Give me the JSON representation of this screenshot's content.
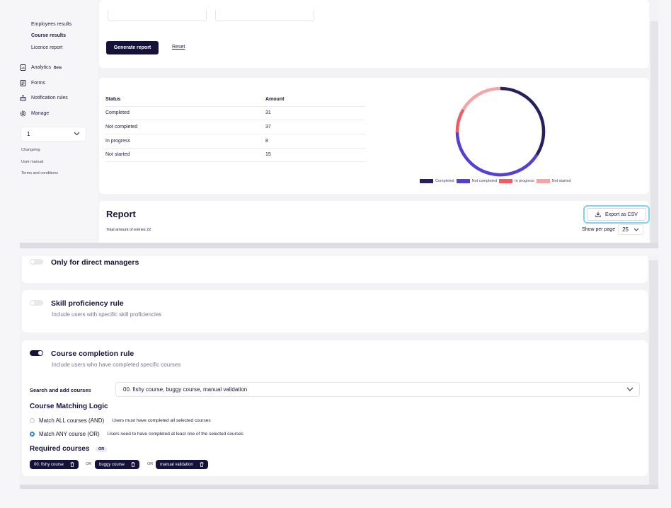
{
  "sidebar": {
    "sub_items": [
      {
        "label": "Employees results",
        "active": false
      },
      {
        "label": "Course results",
        "active": true
      },
      {
        "label": "Licence report",
        "active": false
      }
    ],
    "items": [
      {
        "label": "Analytics",
        "badge": "Beta",
        "icon": "analytics-icon"
      },
      {
        "label": "Forms",
        "icon": "forms-icon"
      },
      {
        "label": "Notification rules",
        "icon": "notification-icon"
      },
      {
        "label": "Manage",
        "icon": "gear-icon"
      }
    ],
    "select_value": "1",
    "links": [
      "Changelog",
      "User manual",
      "Terms and conditions"
    ]
  },
  "filters": {
    "generate_label": "Generate report",
    "reset_label": "Reset"
  },
  "status_table": {
    "headers": [
      "Status",
      "Amount"
    ],
    "rows": [
      {
        "status": "Completed",
        "amount": "31"
      },
      {
        "status": "Not completed",
        "amount": "37"
      },
      {
        "status": "In progress",
        "amount": "8"
      },
      {
        "status": "Not started",
        "amount": "15"
      }
    ]
  },
  "chart_data": {
    "type": "pie",
    "variant": "donut",
    "categories": [
      "Completed",
      "Not completed",
      "In progress",
      "Not started"
    ],
    "values": [
      31,
      37,
      8,
      15
    ],
    "colors": [
      "#26205e",
      "#5440d4",
      "#ee5c66",
      "#f5a5a5"
    ],
    "legend_position": "bottom"
  },
  "report": {
    "title": "Report",
    "entries_text": "Total amount of entries 22",
    "export_label": "Export as CSV",
    "per_page_label": "Show per page",
    "per_page_value": "25"
  },
  "rules": {
    "direct_managers": {
      "title": "Only for direct managers",
      "enabled": false
    },
    "skill": {
      "title": "Skill proficiency rule",
      "description": "Include users with specific skill proficiencies",
      "enabled": false
    },
    "course": {
      "title": "Course completion rule",
      "description": "Include users who have completed specific courses",
      "enabled": true,
      "search_label": "Search and add courses",
      "search_value": "00. fishy course, buggy course, manual validation",
      "logic_title": "Course Matching Logic",
      "options": [
        {
          "label": "Match ALL courses (AND)",
          "description": "Users must have completed all selected courses",
          "checked": false
        },
        {
          "label": "Match ANY course (OR)",
          "description": "Users need to have completed at least one of the selected courses",
          "checked": true
        }
      ],
      "required_title": "Required courses",
      "required_badge": "OR",
      "chips": [
        "00. fishy course",
        "buggy course",
        "manual validation"
      ],
      "chip_separator": "OR"
    }
  },
  "colors": {
    "primary": "#15123a",
    "focus_ring": "#7fd3ec",
    "radio_checked": "#3b82d9"
  }
}
